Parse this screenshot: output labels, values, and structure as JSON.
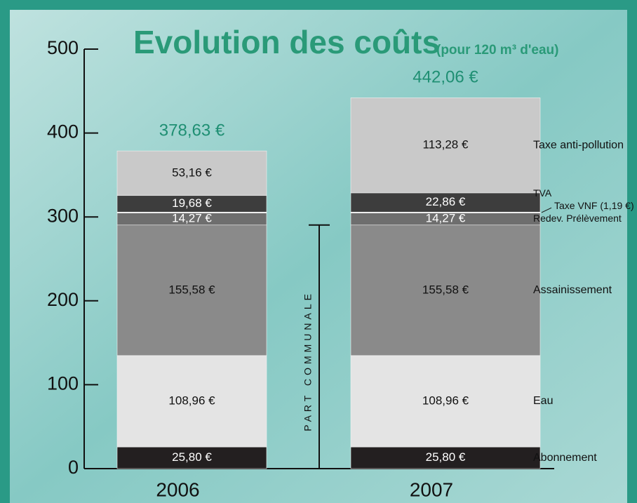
{
  "chart_data": {
    "type": "stacked-bar",
    "title": "Evolution des coûts",
    "subtitle": "(pour 120 m³ d'eau)",
    "annotation": "PART COMMUNALE",
    "categories": [
      "2006",
      "2007"
    ],
    "totals": [
      {
        "value": 378.63,
        "label": "378,63 €"
      },
      {
        "value": 442.06,
        "label": "442,06 €"
      }
    ],
    "series": [
      {
        "name": "Abonnement",
        "color": "#231f20",
        "values": [
          25.8,
          25.8
        ],
        "value_labels": [
          "25,80 €",
          "25,80 €"
        ]
      },
      {
        "name": "Eau",
        "color": "#e4e4e4",
        "values": [
          108.96,
          108.96
        ],
        "value_labels": [
          "108,96 €",
          "108,96 €"
        ]
      },
      {
        "name": "Assainissement",
        "color": "#8a8a8a",
        "values": [
          155.58,
          155.58
        ],
        "value_labels": [
          "155,58 €",
          "155,58 €"
        ]
      },
      {
        "name": "Redev. Prélèvement",
        "color": "#6e6e6e",
        "values": [
          14.27,
          14.27
        ],
        "value_labels": [
          "14,27 €",
          "14,27 €"
        ]
      },
      {
        "name": "Taxe VNF (1,19 €)",
        "color": "#e8e8e8",
        "values": [
          1.19,
          1.19
        ]
      },
      {
        "name": "TVA",
        "color": "#3d3d3d",
        "values": [
          19.68,
          22.86
        ],
        "value_labels": [
          "19,68 €",
          "22,86 €"
        ]
      },
      {
        "name": "Taxe anti-pollution",
        "color": "#c9c9c9",
        "values": [
          53.16,
          113.28
        ],
        "value_labels": [
          "53,16 €",
          "113,28 €"
        ]
      }
    ],
    "ylim": [
      0,
      500
    ],
    "yticks": [
      0,
      100,
      200,
      300,
      400,
      500
    ]
  }
}
